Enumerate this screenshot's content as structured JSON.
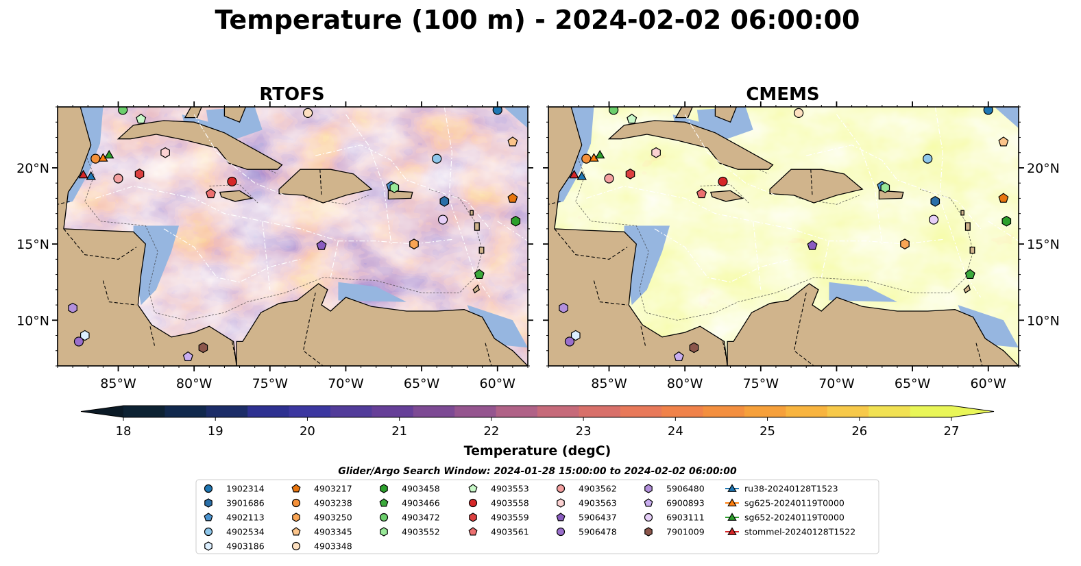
{
  "title": "Temperature (100 m) - 2024-02-02 06:00:00",
  "panels": [
    {
      "title": "RTOFS",
      "palette_bias": 0.0
    },
    {
      "title": "CMEMS",
      "palette_bias": 0.9
    }
  ],
  "map": {
    "lon_range": [
      -89,
      -58
    ],
    "lat_range": [
      7,
      24
    ],
    "lon_ticks": [
      "85°W",
      "80°W",
      "75°W",
      "70°W",
      "65°W",
      "60°W"
    ],
    "lon_tick_values": [
      -85,
      -80,
      -75,
      -70,
      -65,
      -60
    ],
    "lat_ticks": [
      "20°N",
      "15°N",
      "10°N"
    ],
    "lat_tick_values": [
      20,
      15,
      10
    ],
    "land_color": "#d0b48c",
    "shelf_color": "#96b6e0"
  },
  "colorbar": {
    "label": "Temperature (degC)",
    "min": 18,
    "max": 27,
    "step": 0.5,
    "tick_labels": [
      "18",
      "19",
      "20",
      "21",
      "22",
      "23",
      "24",
      "25",
      "26",
      "27"
    ],
    "colors": [
      "#0d2233",
      "#11294d",
      "#1c2d68",
      "#2e3191",
      "#3c37a0",
      "#523c9a",
      "#663f98",
      "#7d4a94",
      "#95558f",
      "#b06287",
      "#c66a7a",
      "#d8706a",
      "#e8795a",
      "#f0824a",
      "#f38f3f",
      "#f6a03b",
      "#f8b43f",
      "#f7c94a",
      "#f1e153",
      "#e9f658"
    ],
    "low_extend": "#0b1a26",
    "high_extend": "#e9f658"
  },
  "search_window": "Glider/Argo Search Window: 2024-01-28 15:00:00 to 2024-02-02 06:00:00",
  "legend": [
    {
      "label": "1902314",
      "marker": "circle",
      "color": "#1f77b4"
    },
    {
      "label": "3901686",
      "marker": "hexagon",
      "color": "#2a6fa8"
    },
    {
      "label": "4902113",
      "marker": "pentagon",
      "color": "#4b94d0"
    },
    {
      "label": "4902534",
      "marker": "circle",
      "color": "#8ec6ea"
    },
    {
      "label": "4903186",
      "marker": "hexagon",
      "color": "#dcefff"
    },
    {
      "label": "4903217",
      "marker": "pentagon",
      "color": "#e8750f"
    },
    {
      "label": "4903238",
      "marker": "circle",
      "color": "#f5913a"
    },
    {
      "label": "4903250",
      "marker": "hexagon",
      "color": "#f9a555"
    },
    {
      "label": "4903345",
      "marker": "pentagon",
      "color": "#fbc48a"
    },
    {
      "label": "4903348",
      "marker": "circle",
      "color": "#fde0c0"
    },
    {
      "label": "4903458",
      "marker": "hexagon",
      "color": "#2ca02c"
    },
    {
      "label": "4903466",
      "marker": "pentagon",
      "color": "#3caa3c"
    },
    {
      "label": "4903472",
      "marker": "circle",
      "color": "#6ccf6c"
    },
    {
      "label": "4903552",
      "marker": "hexagon",
      "color": "#98e898"
    },
    {
      "label": "4903553",
      "marker": "pentagon",
      "color": "#c8f8c8"
    },
    {
      "label": "4903558",
      "marker": "circle",
      "color": "#d62728"
    },
    {
      "label": "4903559",
      "marker": "hexagon",
      "color": "#dc4040"
    },
    {
      "label": "4903561",
      "marker": "pentagon",
      "color": "#ec7070"
    },
    {
      "label": "4903562",
      "marker": "circle",
      "color": "#f4a0a0"
    },
    {
      "label": "4903563",
      "marker": "hexagon",
      "color": "#fcd2d2"
    },
    {
      "label": "5906437",
      "marker": "pentagon",
      "color": "#8a5cc0"
    },
    {
      "label": "5906478",
      "marker": "circle",
      "color": "#9a6fcc"
    },
    {
      "label": "5906480",
      "marker": "hexagon",
      "color": "#b390dc"
    },
    {
      "label": "6900893",
      "marker": "pentagon",
      "color": "#c9aef0"
    },
    {
      "label": "6903111",
      "marker": "circle",
      "color": "#e6cff8"
    },
    {
      "label": "7901009",
      "marker": "hexagon",
      "color": "#8c564b"
    },
    {
      "label": "ru38-20240128T1523",
      "marker": "triangle-line",
      "color": "#1f77b4"
    },
    {
      "label": "sg625-20240119T0000",
      "marker": "triangle-line",
      "color": "#ff7f0e"
    },
    {
      "label": "sg652-20240119T0000",
      "marker": "triangle-line",
      "color": "#2ca02c"
    },
    {
      "label": "stommel-20240128T1522",
      "marker": "triangle-line",
      "color": "#d62728"
    }
  ],
  "markers": [
    {
      "id": "1902314",
      "lon": -60.0,
      "lat": 23.8
    },
    {
      "id": "3901686",
      "lon": -63.5,
      "lat": 17.8
    },
    {
      "id": "4902113",
      "lon": -67.0,
      "lat": 18.8
    },
    {
      "id": "4902534",
      "lon": -64.0,
      "lat": 20.6
    },
    {
      "id": "4903186",
      "lon": -87.2,
      "lat": 9.0
    },
    {
      "id": "4903217",
      "lon": -59.0,
      "lat": 18.0
    },
    {
      "id": "4903238",
      "lon": -86.5,
      "lat": 20.6
    },
    {
      "id": "4903250",
      "lon": -65.5,
      "lat": 15.0
    },
    {
      "id": "4903345",
      "lon": -59.0,
      "lat": 21.7
    },
    {
      "id": "4903348",
      "lon": -72.5,
      "lat": 23.6
    },
    {
      "id": "4903458",
      "lon": -58.8,
      "lat": 16.5
    },
    {
      "id": "4903466",
      "lon": -61.2,
      "lat": 13.0
    },
    {
      "id": "4903472",
      "lon": -84.7,
      "lat": 23.8
    },
    {
      "id": "4903552",
      "lon": -66.8,
      "lat": 18.7
    },
    {
      "id": "4903553",
      "lon": -83.5,
      "lat": 23.2
    },
    {
      "id": "4903558",
      "lon": -77.5,
      "lat": 19.1
    },
    {
      "id": "4903559",
      "lon": -83.6,
      "lat": 19.6
    },
    {
      "id": "4903561",
      "lon": -78.9,
      "lat": 18.3
    },
    {
      "id": "4903562",
      "lon": -85.0,
      "lat": 19.3
    },
    {
      "id": "4903563",
      "lon": -81.9,
      "lat": 21.0
    },
    {
      "id": "5906437",
      "lon": -71.6,
      "lat": 14.9
    },
    {
      "id": "5906478",
      "lon": -87.6,
      "lat": 8.6
    },
    {
      "id": "5906480",
      "lon": -88.0,
      "lat": 10.8
    },
    {
      "id": "6900893",
      "lon": -80.4,
      "lat": 7.6
    },
    {
      "id": "6903111",
      "lon": -63.6,
      "lat": 16.6
    },
    {
      "id": "7901009",
      "lon": -79.4,
      "lat": 8.2
    },
    {
      "id": "ru38-20240128T1523",
      "lon": -86.8,
      "lat": 19.4
    },
    {
      "id": "sg625-20240119T0000",
      "lon": -86.0,
      "lat": 20.6
    },
    {
      "id": "sg652-20240119T0000",
      "lon": -85.6,
      "lat": 20.8
    },
    {
      "id": "stommel-20240128T1522",
      "lon": -87.3,
      "lat": 19.5
    }
  ]
}
